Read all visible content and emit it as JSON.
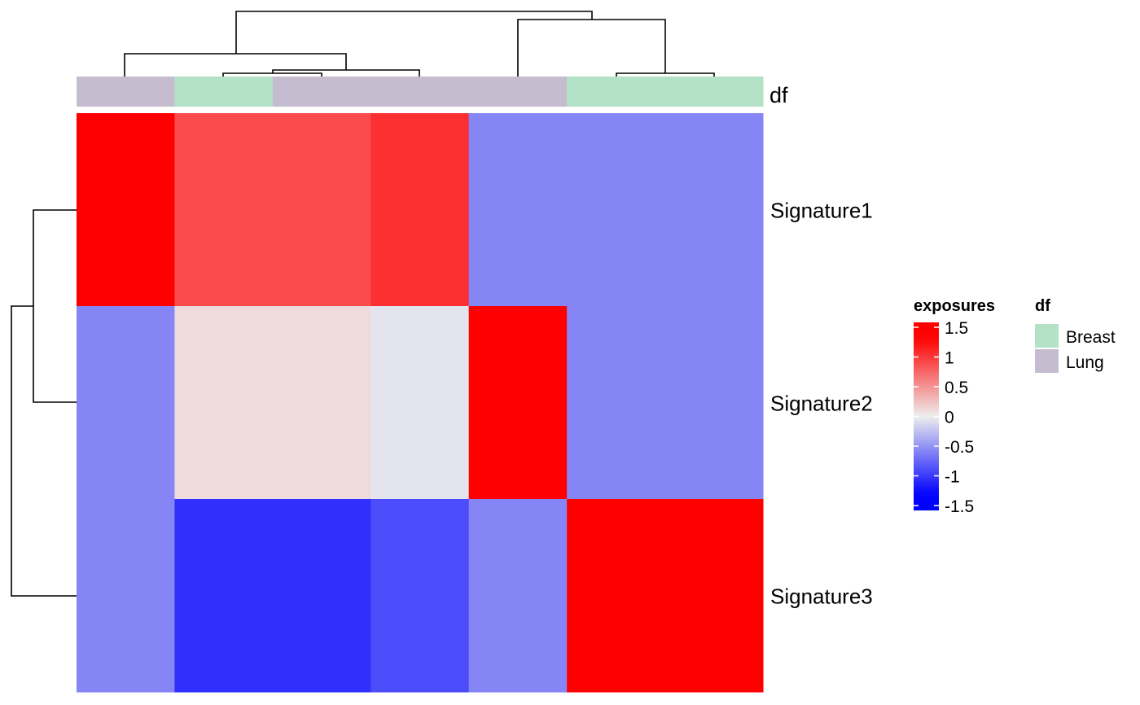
{
  "chart_data": {
    "type": "heatmap",
    "rows": [
      "Signature1",
      "Signature2",
      "Signature3"
    ],
    "columns_annotation_title": "df",
    "column_groups": [
      "Lung",
      "Breast",
      "Lung",
      "Lung",
      "Lung",
      "Breast",
      "Breast"
    ],
    "values": [
      [
        1.4,
        0.85,
        0.85,
        1.0,
        -0.55,
        -0.55,
        -0.55
      ],
      [
        -0.55,
        0.1,
        0.1,
        -0.05,
        1.4,
        -0.55,
        -0.55
      ],
      [
        -0.55,
        -1.0,
        -1.0,
        -0.85,
        -0.55,
        1.4,
        1.4
      ]
    ],
    "colorbar": {
      "title": "exposures",
      "ticks": [
        1.5,
        1,
        0.5,
        0,
        -0.5,
        -1,
        -1.5
      ],
      "tick_labels": [
        "1.5",
        "1",
        "0.5",
        "0",
        "-0.5",
        "-1",
        "-1.5"
      ],
      "range": [
        -1.5,
        1.5
      ],
      "colors": {
        "low": "#0000FF",
        "mid": "#EEEEEE",
        "high": "#FF0000"
      }
    },
    "legend": {
      "title": "df",
      "items": [
        {
          "label": "Breast",
          "color": "#B4E2C6"
        },
        {
          "label": "Lung",
          "color": "#C5BCD0"
        }
      ]
    },
    "dendrograms": {
      "rows": true,
      "columns": true
    }
  }
}
